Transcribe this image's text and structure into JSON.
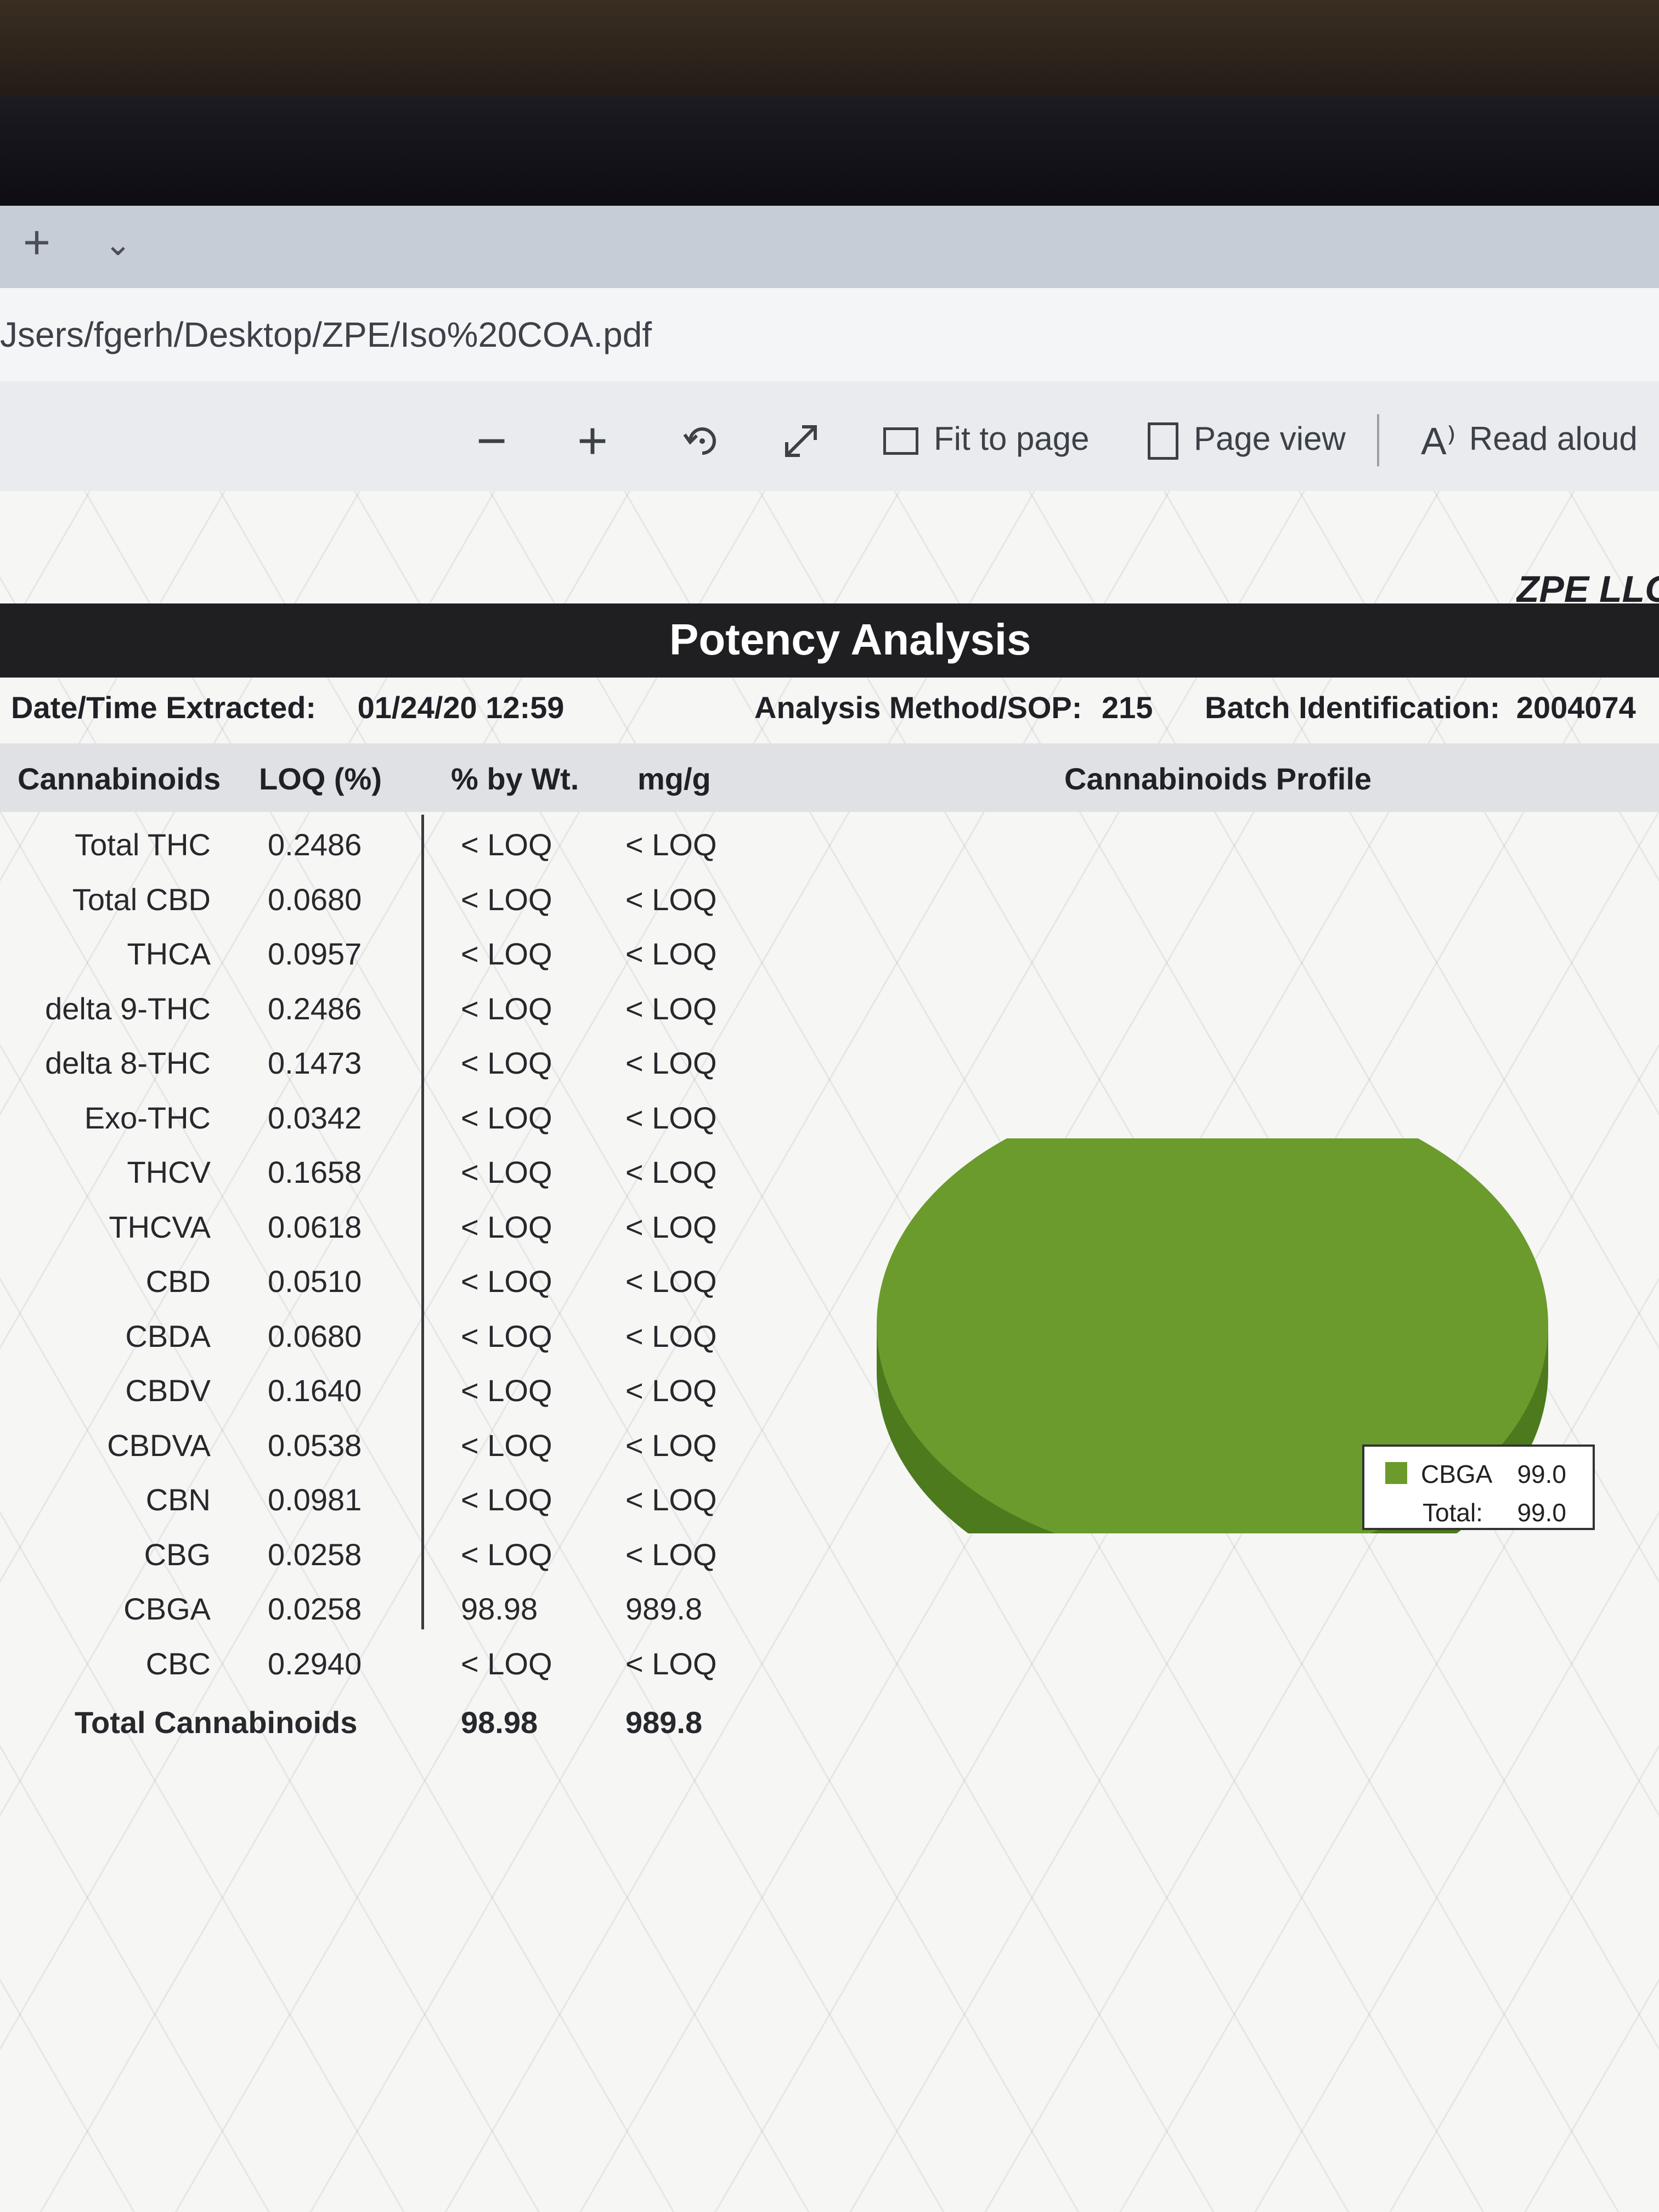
{
  "browser": {
    "tab_plus": "+",
    "tab_chevron": "⌄",
    "address": "Jsers/fgerh/Desktop/ZPE/Iso%20COA.pdf"
  },
  "toolbar": {
    "zoom_out": "−",
    "zoom_in": "+",
    "fit_to_page": "Fit to page",
    "page_view": "Page view",
    "read_aloud": "Read aloud"
  },
  "document": {
    "company": "ZPE LLC",
    "title": "Potency Analysis",
    "date_label": "Date/Time Extracted:",
    "date_value": "01/24/20 12:59",
    "method_label": "Analysis Method/SOP:",
    "method_value": "215",
    "batch_label": "Batch Identification:",
    "batch_value": "2004074",
    "columns": [
      "Cannabinoids",
      "LOQ (%)",
      "% by Wt.",
      "mg/g"
    ],
    "profile_title": "Cannabinoids Profile",
    "rows": [
      {
        "name": "Total THC",
        "loq": "0.2486",
        "wt": "< LOQ",
        "mg": "< LOQ"
      },
      {
        "name": "Total CBD",
        "loq": "0.0680",
        "wt": "< LOQ",
        "mg": "< LOQ"
      },
      {
        "name": "THCA",
        "loq": "0.0957",
        "wt": "< LOQ",
        "mg": "< LOQ"
      },
      {
        "name": "delta 9-THC",
        "loq": "0.2486",
        "wt": "< LOQ",
        "mg": "< LOQ"
      },
      {
        "name": "delta 8-THC",
        "loq": "0.1473",
        "wt": "< LOQ",
        "mg": "< LOQ"
      },
      {
        "name": "Exo-THC",
        "loq": "0.0342",
        "wt": "< LOQ",
        "mg": "< LOQ"
      },
      {
        "name": "THCV",
        "loq": "0.1658",
        "wt": "< LOQ",
        "mg": "< LOQ"
      },
      {
        "name": "THCVA",
        "loq": "0.0618",
        "wt": "< LOQ",
        "mg": "< LOQ"
      },
      {
        "name": "CBD",
        "loq": "0.0510",
        "wt": "< LOQ",
        "mg": "< LOQ"
      },
      {
        "name": "CBDA",
        "loq": "0.0680",
        "wt": "< LOQ",
        "mg": "< LOQ"
      },
      {
        "name": "CBDV",
        "loq": "0.1640",
        "wt": "< LOQ",
        "mg": "< LOQ"
      },
      {
        "name": "CBDVA",
        "loq": "0.0538",
        "wt": "< LOQ",
        "mg": "< LOQ"
      },
      {
        "name": "CBN",
        "loq": "0.0981",
        "wt": "< LOQ",
        "mg": "< LOQ"
      },
      {
        "name": "CBG",
        "loq": "0.0258",
        "wt": "< LOQ",
        "mg": "< LOQ"
      },
      {
        "name": "CBGA",
        "loq": "0.0258",
        "wt": "98.98",
        "mg": "989.8"
      },
      {
        "name": "CBC",
        "loq": "0.2940",
        "wt": "< LOQ",
        "mg": "< LOQ"
      }
    ],
    "total": {
      "name": "Total Cannabinoids",
      "wt": "98.98",
      "mg": "989.8"
    }
  },
  "chart_data": {
    "type": "pie",
    "categories": [
      "CBGA"
    ],
    "values": [
      99.0
    ],
    "data_labels": [
      "99.0"
    ],
    "legend": [
      {
        "label": "CBGA",
        "value": "99.0"
      },
      {
        "label": "Total:",
        "value": "99.0"
      }
    ],
    "legend_position": "right",
    "colors": [
      "#6a9b2c"
    ]
  },
  "colors": {
    "pie_top": "#6a9b2c",
    "pie_side": "#4c7a1c",
    "title_bar": "#1f1f22"
  }
}
